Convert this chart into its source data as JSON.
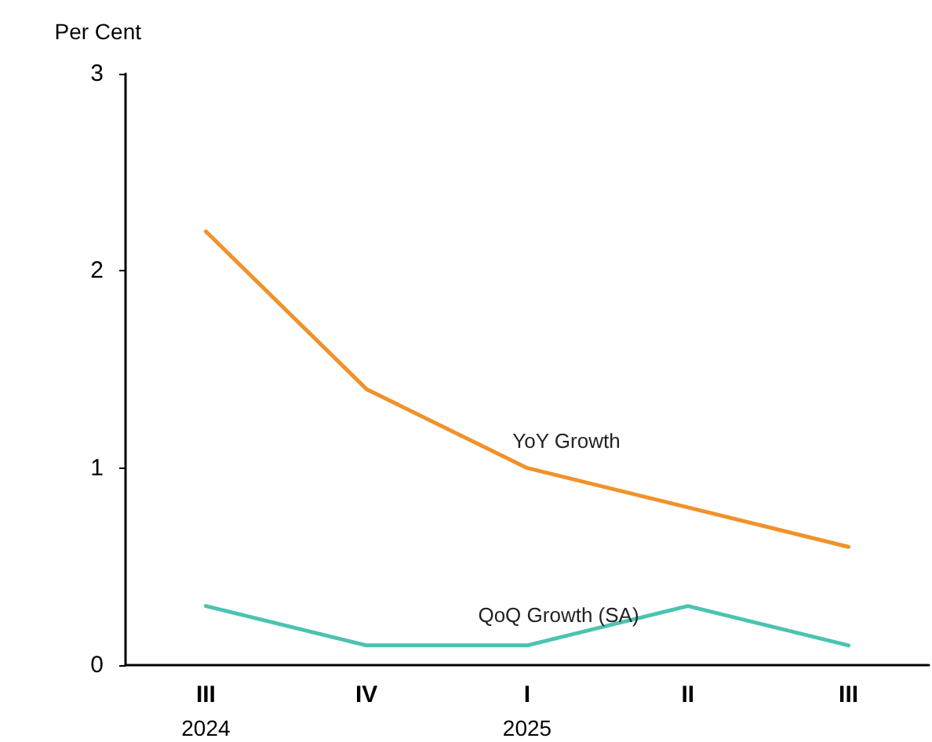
{
  "chart_data": {
    "type": "line",
    "ylabel": "Per Cent",
    "categories": [
      "III\n2024",
      "IV",
      "I\n2025",
      "II",
      "III"
    ],
    "series": [
      {
        "name": "YoY Growth",
        "color": "#f0922b",
        "values": [
          2.2,
          1.4,
          1.0,
          0.8,
          0.6
        ]
      },
      {
        "name": "QoQ Growth (SA)",
        "color": "#4cc3b0",
        "values": [
          0.3,
          0.1,
          0.1,
          0.3,
          0.1
        ]
      }
    ],
    "ylim": [
      0,
      3
    ],
    "yticks": [
      0,
      1,
      2,
      3
    ],
    "grid": false,
    "legend": false,
    "marker": "none",
    "line_style": "solid"
  }
}
